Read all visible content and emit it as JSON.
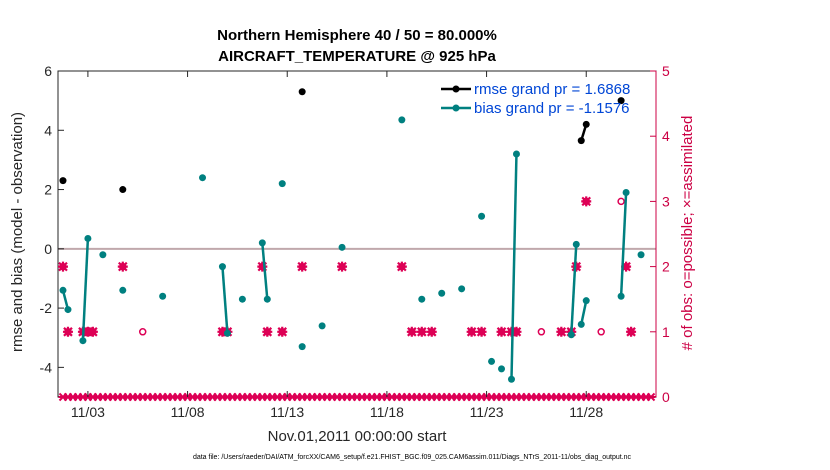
{
  "chart_data": {
    "type": "line",
    "title": "Northern Hemisphere 40 / 50 = 80.000%",
    "subtitle": "AIRCRAFT_TEMPERATURE @ 925 hPa",
    "xlabel": "Nov.01,2011 00:00:00 start",
    "ylabel": "rmse and bias (model - observation)",
    "y2label": "# of obs: o=possible; ×=assimilated",
    "footnote": "data file: /Users/raeder/DAI/ATM_forcXX/CAM6_setup/f.e21.FHIST_BGC.f09_025.CAM6assim.011/Diags_NTrS_2011-11/obs_diag_output.nc",
    "xlim": [
      1.5,
      31.5
    ],
    "ylim": [
      -5,
      6
    ],
    "y2lim": [
      0,
      5
    ],
    "x_ticks": [
      3,
      8,
      13,
      18,
      23,
      28
    ],
    "x_tick_labels": [
      "11/03",
      "11/08",
      "11/13",
      "11/18",
      "11/23",
      "11/28"
    ],
    "y_ticks": [
      -4,
      -2,
      0,
      2,
      4,
      6
    ],
    "y2_ticks": [
      0,
      1,
      2,
      3,
      4,
      5
    ],
    "zero_line": 0,
    "colors": {
      "rmse": "#000000",
      "bias": "#008080",
      "obs": "#dd0055",
      "zero": "#c0a8ac"
    },
    "legend": [
      {
        "label": "rmse grand pr = 1.6868",
        "series": "rmse"
      },
      {
        "label": "bias grand pr = -1.1576",
        "series": "bias"
      }
    ],
    "series": [
      {
        "name": "rmse",
        "segments": [
          [
            [
              1.75,
              2.3
            ]
          ],
          [
            [
              4.75,
              2.0
            ]
          ],
          [
            [
              13.75,
              5.3
            ]
          ],
          [
            [
              27.75,
              3.65
            ],
            [
              28.0,
              4.2
            ]
          ],
          [
            [
              29.75,
              5.0
            ]
          ]
        ]
      },
      {
        "name": "bias",
        "segments": [
          [
            [
              1.75,
              -1.4
            ],
            [
              2.0,
              -2.05
            ]
          ],
          [
            [
              2.75,
              -3.1
            ],
            [
              3.0,
              0.35
            ]
          ],
          [
            [
              3.75,
              -0.2
            ]
          ],
          [
            [
              4.75,
              -1.4
            ]
          ],
          [
            [
              6.75,
              -1.6
            ]
          ],
          [
            [
              8.75,
              2.4
            ]
          ],
          [
            [
              9.75,
              -0.6
            ],
            [
              10.0,
              -2.85
            ]
          ],
          [
            [
              10.75,
              -1.7
            ]
          ],
          [
            [
              11.75,
              0.2
            ],
            [
              12.0,
              -1.7
            ]
          ],
          [
            [
              12.75,
              2.2
            ]
          ],
          [
            [
              13.75,
              -3.3
            ]
          ],
          [
            [
              14.75,
              -2.6
            ]
          ],
          [
            [
              15.75,
              0.05
            ]
          ],
          [
            [
              18.75,
              4.35
            ]
          ],
          [
            [
              19.75,
              -1.7
            ]
          ],
          [
            [
              20.75,
              -1.5
            ]
          ],
          [
            [
              21.75,
              -1.35
            ]
          ],
          [
            [
              22.75,
              1.1
            ]
          ],
          [
            [
              23.25,
              -3.8
            ]
          ],
          [
            [
              23.75,
              -4.05
            ]
          ],
          [
            [
              24.25,
              -4.4
            ],
            [
              24.5,
              3.2
            ]
          ],
          [
            [
              27.25,
              -2.9
            ],
            [
              27.5,
              0.15
            ]
          ],
          [
            [
              27.75,
              -2.55
            ],
            [
              28.0,
              -1.75
            ]
          ],
          [
            [
              29.75,
              -1.6
            ],
            [
              30.0,
              1.9
            ]
          ],
          [
            [
              30.75,
              -0.2
            ]
          ]
        ]
      }
    ],
    "obs_possible_x": [
      1.75,
      2.0,
      2.75,
      3.0,
      3.25,
      4.75,
      5.75,
      9.75,
      10.0,
      11.75,
      12.0,
      12.75,
      13.75,
      15.75,
      18.75,
      19.25,
      19.75,
      20.25,
      22.25,
      22.75,
      23.75,
      24.25,
      24.5,
      25.75,
      26.75,
      27.25,
      27.5,
      28.0,
      28.75,
      29.75,
      30.0,
      30.25
    ],
    "obs_possible_y": [
      2,
      1,
      1,
      1,
      1,
      2,
      1,
      1,
      1,
      2,
      1,
      1,
      2,
      2,
      2,
      1,
      1,
      1,
      1,
      1,
      1,
      1,
      1,
      1,
      1,
      1,
      2,
      3,
      1,
      3,
      2,
      1
    ],
    "obs_used_x": [
      1.75,
      2.0,
      2.75,
      3.0,
      3.25,
      4.75,
      9.75,
      10.0,
      11.75,
      12.0,
      12.75,
      13.75,
      15.75,
      18.75,
      19.25,
      19.75,
      20.25,
      22.25,
      22.75,
      23.75,
      24.25,
      24.5,
      26.75,
      27.25,
      27.5,
      28.0,
      30.0,
      30.25
    ],
    "obs_used_y": [
      2,
      1,
      1,
      1,
      1,
      2,
      1,
      1,
      2,
      1,
      1,
      2,
      2,
      2,
      1,
      1,
      1,
      1,
      1,
      1,
      1,
      1,
      1,
      1,
      2,
      3,
      2,
      1
    ]
  }
}
